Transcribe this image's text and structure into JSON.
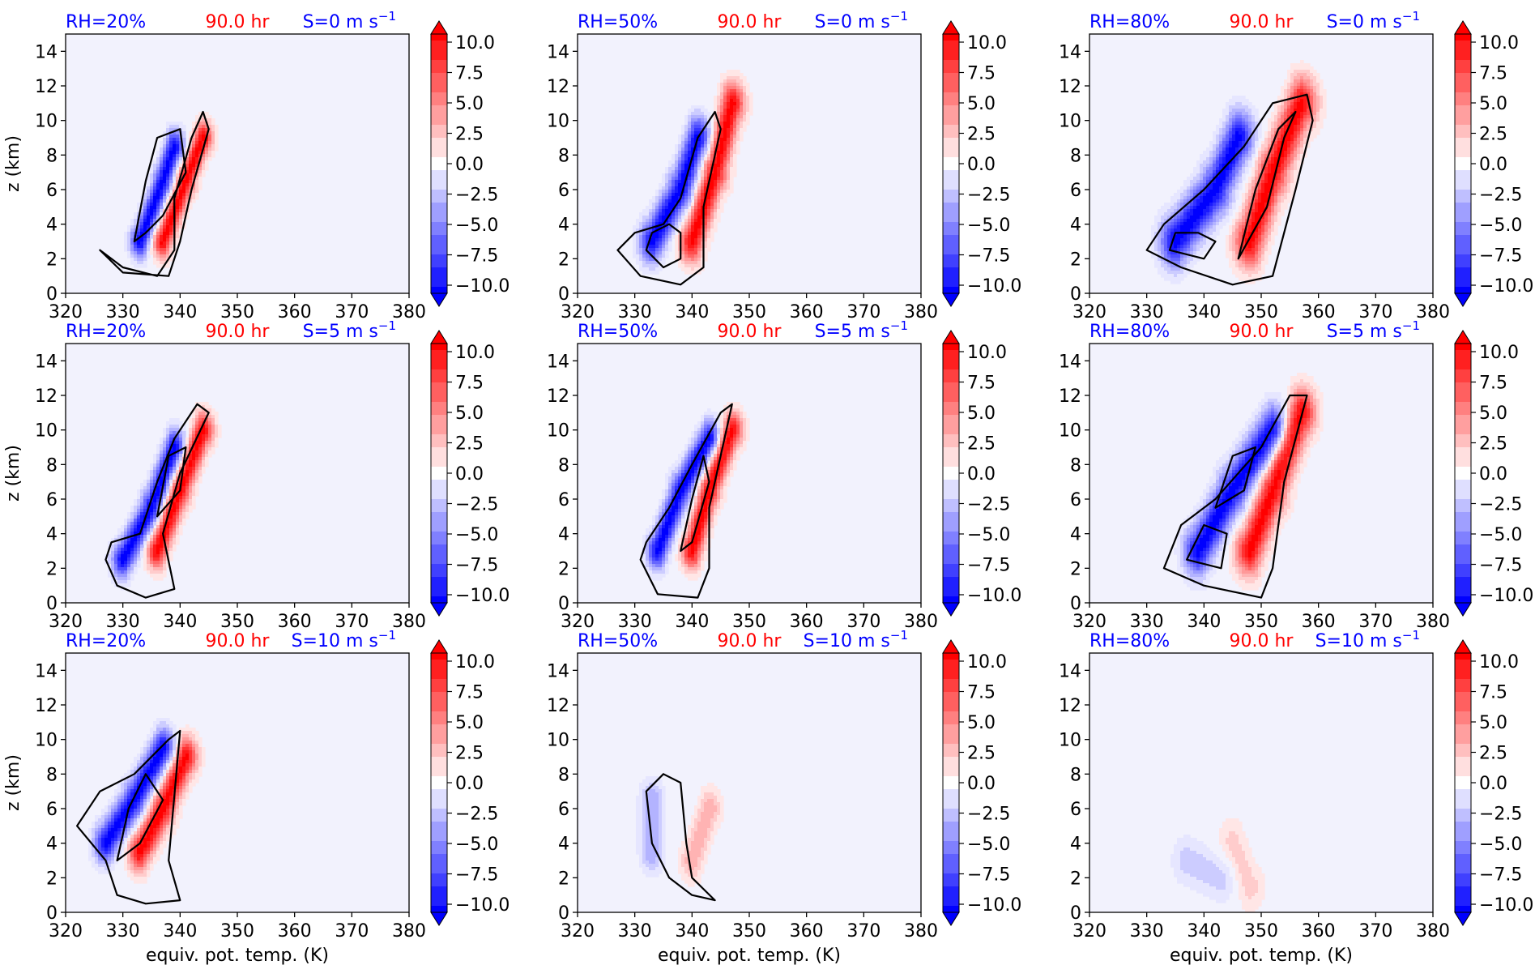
{
  "figure": {
    "time_label": "90.0 hr",
    "ylabel": "z (km)",
    "xlabel": "equiv. pot. temp. (K)",
    "colors": {
      "rh_label": "#0000ff",
      "time_label": "#ff0000",
      "shear_label": "#0000ff",
      "background": "#f2f2fd",
      "contour": "#000000"
    },
    "colorbar": {
      "colormap": "bwr",
      "range": [
        -10,
        10
      ],
      "extend": "both",
      "tick_labels": [
        "10.0",
        "7.5",
        "5.0",
        "2.5",
        "0.0",
        "−2.5",
        "−5.0",
        "−7.5",
        "−10.0"
      ]
    }
  },
  "chart_data": [
    {
      "type": "heatmap",
      "row": 0,
      "col": 0,
      "rh_label": "RH=20%",
      "shear_label": "S=0 m s",
      "shear_sup": "−1",
      "xlabel": "",
      "ylabel": "z (km)",
      "xlim": [
        320,
        380
      ],
      "ylim": [
        0,
        15
      ],
      "xticks": [
        "320",
        "330",
        "340",
        "350",
        "360",
        "370",
        "380"
      ],
      "yticks": [
        "0",
        "2",
        "4",
        "6",
        "8",
        "10",
        "12",
        "14"
      ],
      "signal": {
        "neg": [
          [
            333,
            3
          ],
          [
            337,
            6.5
          ],
          [
            339,
            8.5
          ]
        ],
        "pos": [
          [
            337,
            3
          ],
          [
            341,
            6.5
          ],
          [
            344,
            9
          ]
        ],
        "spread": 1.0
      },
      "contours": [
        [
          [
            326,
            2.5
          ],
          [
            330,
            1.5
          ],
          [
            336,
            1.0
          ],
          [
            339,
            2.5
          ],
          [
            339,
            5.5
          ],
          [
            342,
            9.0
          ],
          [
            344,
            10.5
          ],
          [
            345,
            9.5
          ],
          [
            342,
            6.0
          ],
          [
            340,
            3.0
          ],
          [
            338,
            1.0
          ],
          [
            330,
            1.2
          ],
          [
            326,
            2.5
          ]
        ],
        [
          [
            332,
            3.0
          ],
          [
            334,
            6.5
          ],
          [
            336,
            9.0
          ],
          [
            340,
            9.5
          ],
          [
            341,
            7.0
          ],
          [
            337,
            4.5
          ],
          [
            334,
            3.5
          ],
          [
            332,
            3.0
          ]
        ]
      ]
    },
    {
      "type": "heatmap",
      "row": 0,
      "col": 1,
      "rh_label": "RH=50%",
      "shear_label": "S=0 m s",
      "shear_sup": "−1",
      "xlabel": "",
      "ylabel": "",
      "xlim": [
        320,
        380
      ],
      "ylim": [
        0,
        15
      ],
      "xticks": [
        "320",
        "330",
        "340",
        "350",
        "360",
        "370",
        "380"
      ],
      "yticks": [
        "0",
        "2",
        "4",
        "6",
        "8",
        "10",
        "12",
        "14"
      ],
      "signal": {
        "neg": [
          [
            333,
            3
          ],
          [
            338,
            6
          ],
          [
            341,
            9
          ]
        ],
        "pos": [
          [
            340,
            3
          ],
          [
            344,
            7
          ],
          [
            347,
            11
          ]
        ],
        "spread": 1.3
      },
      "contours": [
        [
          [
            327,
            2.5
          ],
          [
            331,
            1.0
          ],
          [
            338,
            0.5
          ],
          [
            342,
            1.5
          ],
          [
            342,
            5.0
          ],
          [
            345,
            9.5
          ],
          [
            344,
            10.5
          ],
          [
            341,
            9.0
          ],
          [
            338,
            5.5
          ],
          [
            335,
            4.0
          ],
          [
            330,
            3.5
          ],
          [
            327,
            2.5
          ]
        ],
        [
          [
            332,
            2.5
          ],
          [
            335,
            1.5
          ],
          [
            338,
            2.0
          ],
          [
            338,
            3.5
          ],
          [
            336,
            4.0
          ],
          [
            333,
            3.5
          ],
          [
            332,
            2.5
          ]
        ]
      ]
    },
    {
      "type": "heatmap",
      "row": 0,
      "col": 2,
      "rh_label": "RH=80%",
      "shear_label": "S=0 m s",
      "shear_sup": "−1",
      "xlabel": "",
      "ylabel": "",
      "xlim": [
        320,
        380
      ],
      "ylim": [
        0,
        15
      ],
      "xticks": [
        "320",
        "330",
        "340",
        "350",
        "360",
        "370",
        "380"
      ],
      "yticks": [
        "0",
        "2",
        "4",
        "6",
        "8",
        "10",
        "12",
        "14"
      ],
      "signal": {
        "neg": [
          [
            335,
            3
          ],
          [
            342,
            6
          ],
          [
            346,
            9
          ]
        ],
        "pos": [
          [
            348,
            3
          ],
          [
            352,
            7
          ],
          [
            357,
            11
          ]
        ],
        "spread": 1.6
      },
      "contours": [
        [
          [
            330,
            2.5
          ],
          [
            336,
            1.5
          ],
          [
            345,
            0.5
          ],
          [
            352,
            1.0
          ],
          [
            356,
            6.0
          ],
          [
            359,
            10.0
          ],
          [
            358,
            11.5
          ],
          [
            352,
            11.0
          ],
          [
            347,
            8.5
          ],
          [
            340,
            6.0
          ],
          [
            333,
            4.0
          ],
          [
            330,
            2.5
          ]
        ],
        [
          [
            334,
            2.5
          ],
          [
            340,
            2.0
          ],
          [
            342,
            3.0
          ],
          [
            339,
            3.5
          ],
          [
            335,
            3.5
          ],
          [
            334,
            2.5
          ]
        ],
        [
          [
            346,
            2.0
          ],
          [
            351,
            5.0
          ],
          [
            354,
            9.0
          ],
          [
            356,
            10.5
          ],
          [
            353,
            9.5
          ],
          [
            349,
            6.0
          ],
          [
            346,
            2.0
          ]
        ]
      ]
    },
    {
      "type": "heatmap",
      "row": 1,
      "col": 0,
      "rh_label": "RH=20%",
      "shear_label": "S=5 m s",
      "shear_sup": "−1",
      "xlabel": "",
      "ylabel": "z (km)",
      "xlim": [
        320,
        380
      ],
      "ylim": [
        0,
        15
      ],
      "xticks": [
        "320",
        "330",
        "340",
        "350",
        "360",
        "370",
        "380"
      ],
      "yticks": [
        "0",
        "2",
        "4",
        "6",
        "8",
        "10",
        "12",
        "14"
      ],
      "signal": {
        "neg": [
          [
            330,
            2.5
          ],
          [
            335,
            5.5
          ],
          [
            339,
            9
          ]
        ],
        "pos": [
          [
            336,
            3
          ],
          [
            340,
            6.5
          ],
          [
            344,
            10
          ]
        ],
        "spread": 1.1
      },
      "contours": [
        [
          [
            327,
            2.5
          ],
          [
            329,
            1.0
          ],
          [
            334,
            0.3
          ],
          [
            339,
            0.8
          ],
          [
            337,
            4.0
          ],
          [
            340,
            7.5
          ],
          [
            345,
            11.0
          ],
          [
            343,
            11.5
          ],
          [
            339,
            9.5
          ],
          [
            336,
            7.0
          ],
          [
            333,
            4.0
          ],
          [
            328,
            3.5
          ],
          [
            327,
            2.5
          ]
        ],
        [
          [
            336,
            5.0
          ],
          [
            338,
            8.5
          ],
          [
            341,
            9.0
          ],
          [
            340,
            6.5
          ],
          [
            336,
            5.0
          ]
        ]
      ]
    },
    {
      "type": "heatmap",
      "row": 1,
      "col": 1,
      "rh_label": "RH=50%",
      "shear_label": "S=5 m s",
      "shear_sup": "−1",
      "xlabel": "",
      "ylabel": "",
      "xlim": [
        320,
        380
      ],
      "ylim": [
        0,
        15
      ],
      "xticks": [
        "320",
        "330",
        "340",
        "350",
        "360",
        "370",
        "380"
      ],
      "yticks": [
        "0",
        "2",
        "4",
        "6",
        "8",
        "10",
        "12",
        "14"
      ],
      "signal": {
        "neg": [
          [
            334,
            3
          ],
          [
            338,
            6.5
          ],
          [
            343,
            9.5
          ]
        ],
        "pos": [
          [
            340,
            3
          ],
          [
            343,
            6.5
          ],
          [
            347,
            10
          ]
        ],
        "spread": 1.1
      },
      "contours": [
        [
          [
            331,
            2.5
          ],
          [
            334,
            0.5
          ],
          [
            341,
            0.3
          ],
          [
            343,
            2.0
          ],
          [
            343,
            5.5
          ],
          [
            347,
            11.5
          ],
          [
            345,
            11.0
          ],
          [
            340,
            8.0
          ],
          [
            336,
            5.5
          ],
          [
            332,
            3.5
          ],
          [
            331,
            2.5
          ]
        ],
        [
          [
            338,
            3.0
          ],
          [
            340,
            6.0
          ],
          [
            342,
            8.5
          ],
          [
            343,
            7.0
          ],
          [
            340,
            3.5
          ],
          [
            338,
            3.0
          ]
        ]
      ]
    },
    {
      "type": "heatmap",
      "row": 1,
      "col": 2,
      "rh_label": "RH=80%",
      "shear_label": "S=5 m s",
      "shear_sup": "−1",
      "xlabel": "",
      "ylabel": "",
      "xlim": [
        320,
        380
      ],
      "ylim": [
        0,
        15
      ],
      "xticks": [
        "320",
        "330",
        "340",
        "350",
        "360",
        "370",
        "380"
      ],
      "yticks": [
        "0",
        "2",
        "4",
        "6",
        "8",
        "10",
        "12",
        "14"
      ],
      "signal": {
        "neg": [
          [
            339,
            3
          ],
          [
            345,
            6.5
          ],
          [
            352,
            10
          ]
        ],
        "pos": [
          [
            348,
            3
          ],
          [
            352,
            6.5
          ],
          [
            357,
            11
          ]
        ],
        "spread": 1.5
      },
      "contours": [
        [
          [
            333,
            2.0
          ],
          [
            340,
            1.0
          ],
          [
            350,
            0.3
          ],
          [
            352,
            2.0
          ],
          [
            354,
            7.0
          ],
          [
            358,
            12.0
          ],
          [
            355,
            12.0
          ],
          [
            350,
            9.0
          ],
          [
            342,
            6.0
          ],
          [
            336,
            4.5
          ],
          [
            333,
            2.0
          ]
        ],
        [
          [
            342,
            5.5
          ],
          [
            345,
            8.5
          ],
          [
            349,
            9.0
          ],
          [
            347,
            6.5
          ],
          [
            342,
            5.5
          ]
        ],
        [
          [
            337,
            2.5
          ],
          [
            343,
            2.0
          ],
          [
            344,
            4.0
          ],
          [
            340,
            4.5
          ],
          [
            337,
            2.5
          ]
        ]
      ]
    },
    {
      "type": "heatmap",
      "row": 2,
      "col": 0,
      "rh_label": "RH=20%",
      "shear_label": "S=10 m s",
      "shear_sup": "−1",
      "xlabel": "equiv. pot. temp. (K)",
      "ylabel": "z (km)",
      "xlim": [
        320,
        380
      ],
      "ylim": [
        0,
        15
      ],
      "xticks": [
        "320",
        "330",
        "340",
        "350",
        "360",
        "370",
        "380"
      ],
      "yticks": [
        "0",
        "2",
        "4",
        "6",
        "8",
        "10",
        "12",
        "14"
      ],
      "signal": {
        "neg": [
          [
            327,
            4
          ],
          [
            332,
            6.5
          ],
          [
            337,
            9.5
          ]
        ],
        "pos": [
          [
            333,
            3.5
          ],
          [
            337,
            6
          ],
          [
            341,
            9
          ]
        ],
        "spread": 1.2
      },
      "contours": [
        [
          [
            322,
            5.0
          ],
          [
            327,
            3.0
          ],
          [
            329,
            1.0
          ],
          [
            334,
            0.5
          ],
          [
            340,
            0.7
          ],
          [
            338,
            3.0
          ],
          [
            340,
            10.5
          ],
          [
            338,
            10.0
          ],
          [
            332,
            8.0
          ],
          [
            326,
            7.0
          ],
          [
            322,
            5.0
          ]
        ],
        [
          [
            329,
            3.0
          ],
          [
            331,
            6.0
          ],
          [
            334,
            8.0
          ],
          [
            337,
            6.5
          ],
          [
            333,
            4.0
          ],
          [
            329,
            3.0
          ]
        ]
      ]
    },
    {
      "type": "heatmap",
      "row": 2,
      "col": 1,
      "rh_label": "RH=50%",
      "shear_label": "S=10 m s",
      "shear_sup": "−1",
      "xlabel": "equiv. pot. temp. (K)",
      "ylabel": "",
      "xlim": [
        320,
        380
      ],
      "ylim": [
        0,
        15
      ],
      "xticks": [
        "320",
        "330",
        "340",
        "350",
        "360",
        "370",
        "380"
      ],
      "yticks": [
        "0",
        "2",
        "4",
        "6",
        "8",
        "10",
        "12",
        "14"
      ],
      "signal": {
        "neg": [
          [
            333,
            3.5
          ],
          [
            333,
            6.5
          ]
        ],
        "pos": [
          [
            340,
            3
          ],
          [
            343,
            6
          ]
        ],
        "spread": 1.2,
        "scale": 0.35
      },
      "contours": [
        [
          [
            332,
            7.0
          ],
          [
            335,
            8.0
          ],
          [
            338,
            7.5
          ],
          [
            339,
            4.0
          ],
          [
            340,
            2.0
          ],
          [
            344,
            0.7
          ],
          [
            340,
            1.0
          ],
          [
            336,
            2.0
          ],
          [
            333,
            4.0
          ],
          [
            332,
            7.0
          ]
        ]
      ]
    },
    {
      "type": "heatmap",
      "row": 2,
      "col": 2,
      "rh_label": "RH=80%",
      "shear_label": "S=10 m s",
      "shear_sup": "−1",
      "xlabel": "equiv. pot. temp. (K)",
      "ylabel": "",
      "xlim": [
        320,
        380
      ],
      "ylim": [
        0,
        15
      ],
      "xticks": [
        "320",
        "330",
        "340",
        "350",
        "360",
        "370",
        "380"
      ],
      "yticks": [
        "0",
        "2",
        "4",
        "6",
        "8",
        "10",
        "12",
        "14"
      ],
      "signal": {
        "neg": [
          [
            337,
            3
          ],
          [
            343,
            2
          ]
        ],
        "pos": [
          [
            348,
            1.5
          ],
          [
            345,
            4
          ]
        ],
        "spread": 1.5,
        "scale": 0.2
      },
      "contours": []
    }
  ]
}
